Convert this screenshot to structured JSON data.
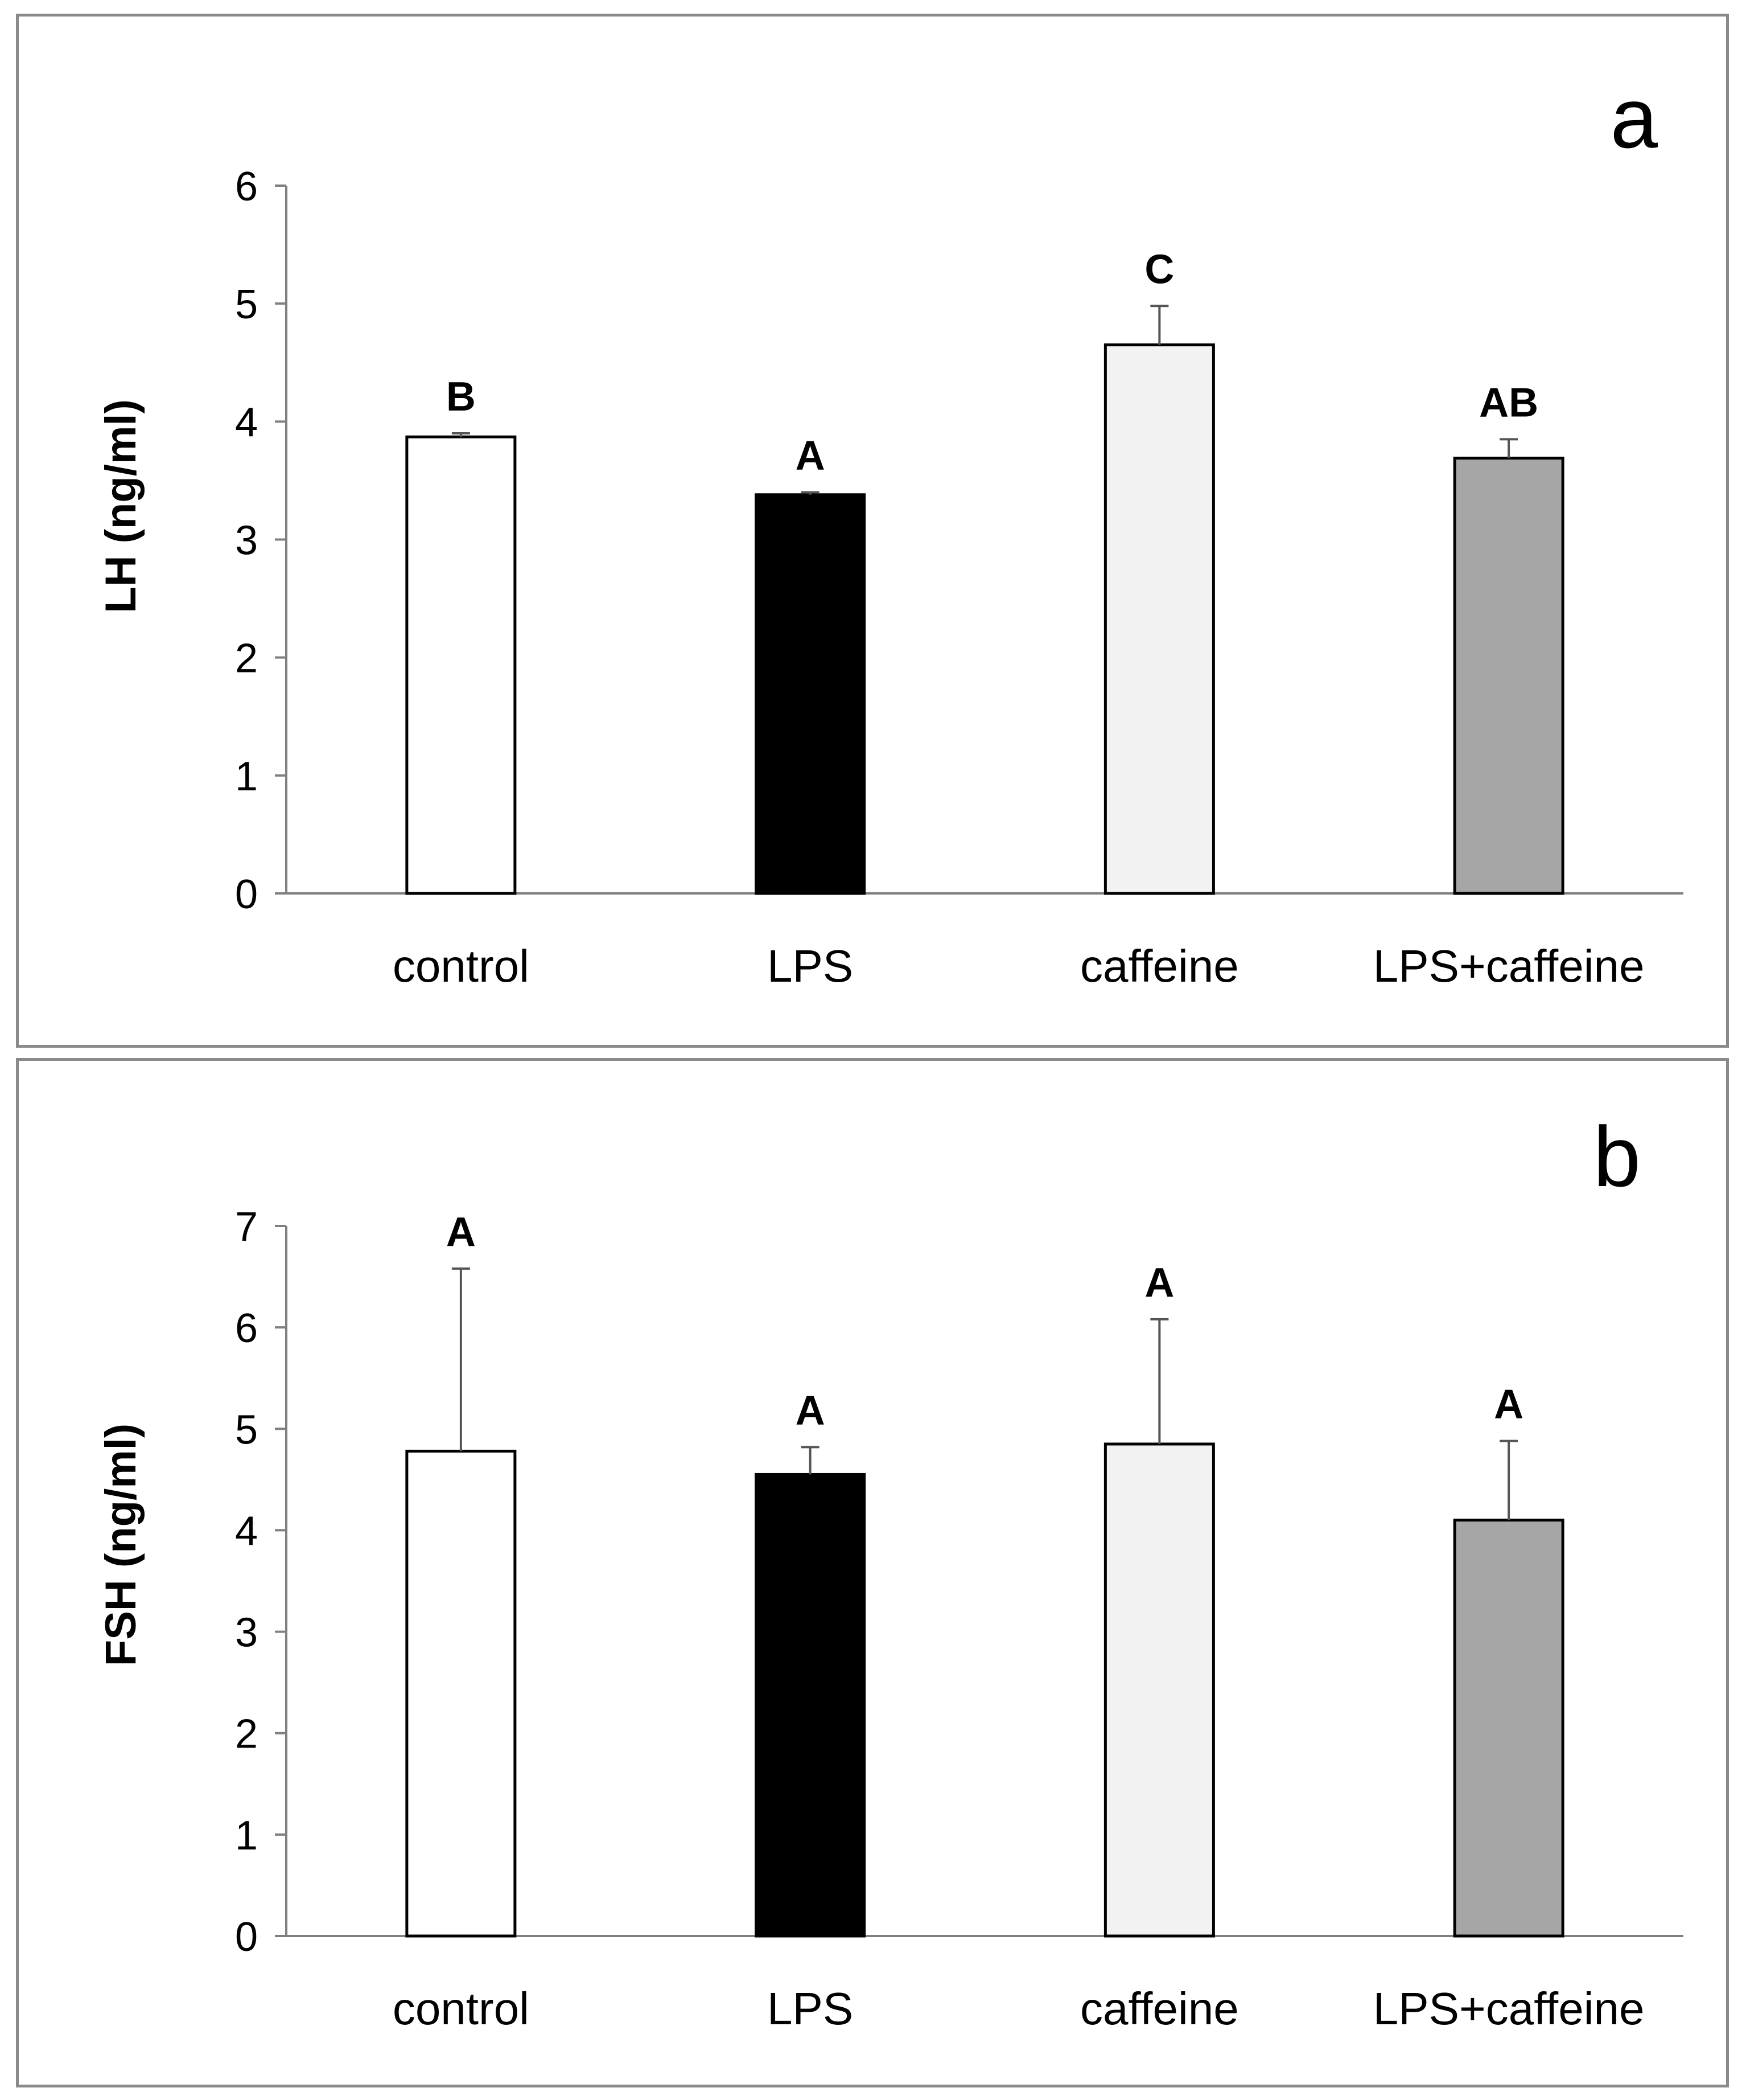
{
  "chart_data": [
    {
      "type": "bar",
      "panel_label": "a",
      "categories": [
        "control",
        "LPS",
        "caffeine",
        "LPS+caffeine"
      ],
      "values": [
        3.87,
        3.38,
        4.65,
        3.69
      ],
      "errors": [
        0.03,
        0.02,
        0.33,
        0.16
      ],
      "significance": [
        "B",
        "A",
        "C",
        "AB"
      ],
      "colors": [
        "#ffffff",
        "#000000",
        "#f2f2f2",
        "#a6a6a6"
      ],
      "xlabel": "",
      "ylabel": "LH (ng/ml)",
      "ylim": [
        0,
        6
      ],
      "yticks": [
        0,
        1,
        2,
        3,
        4,
        5,
        6
      ],
      "grid": false
    },
    {
      "type": "bar",
      "panel_label": "b",
      "categories": [
        "control",
        "LPS",
        "caffeine",
        "LPS+caffeine"
      ],
      "values": [
        4.78,
        4.55,
        4.85,
        4.1
      ],
      "errors": [
        1.8,
        0.27,
        1.23,
        0.78
      ],
      "significance": [
        "A",
        "A",
        "A",
        "A"
      ],
      "colors": [
        "#ffffff",
        "#000000",
        "#f2f2f2",
        "#a6a6a6"
      ],
      "xlabel": "",
      "ylabel": "FSH (ng/ml)",
      "ylim": [
        0,
        7
      ],
      "yticks": [
        0,
        1,
        2,
        3,
        4,
        5,
        6,
        7
      ],
      "grid": false
    }
  ]
}
